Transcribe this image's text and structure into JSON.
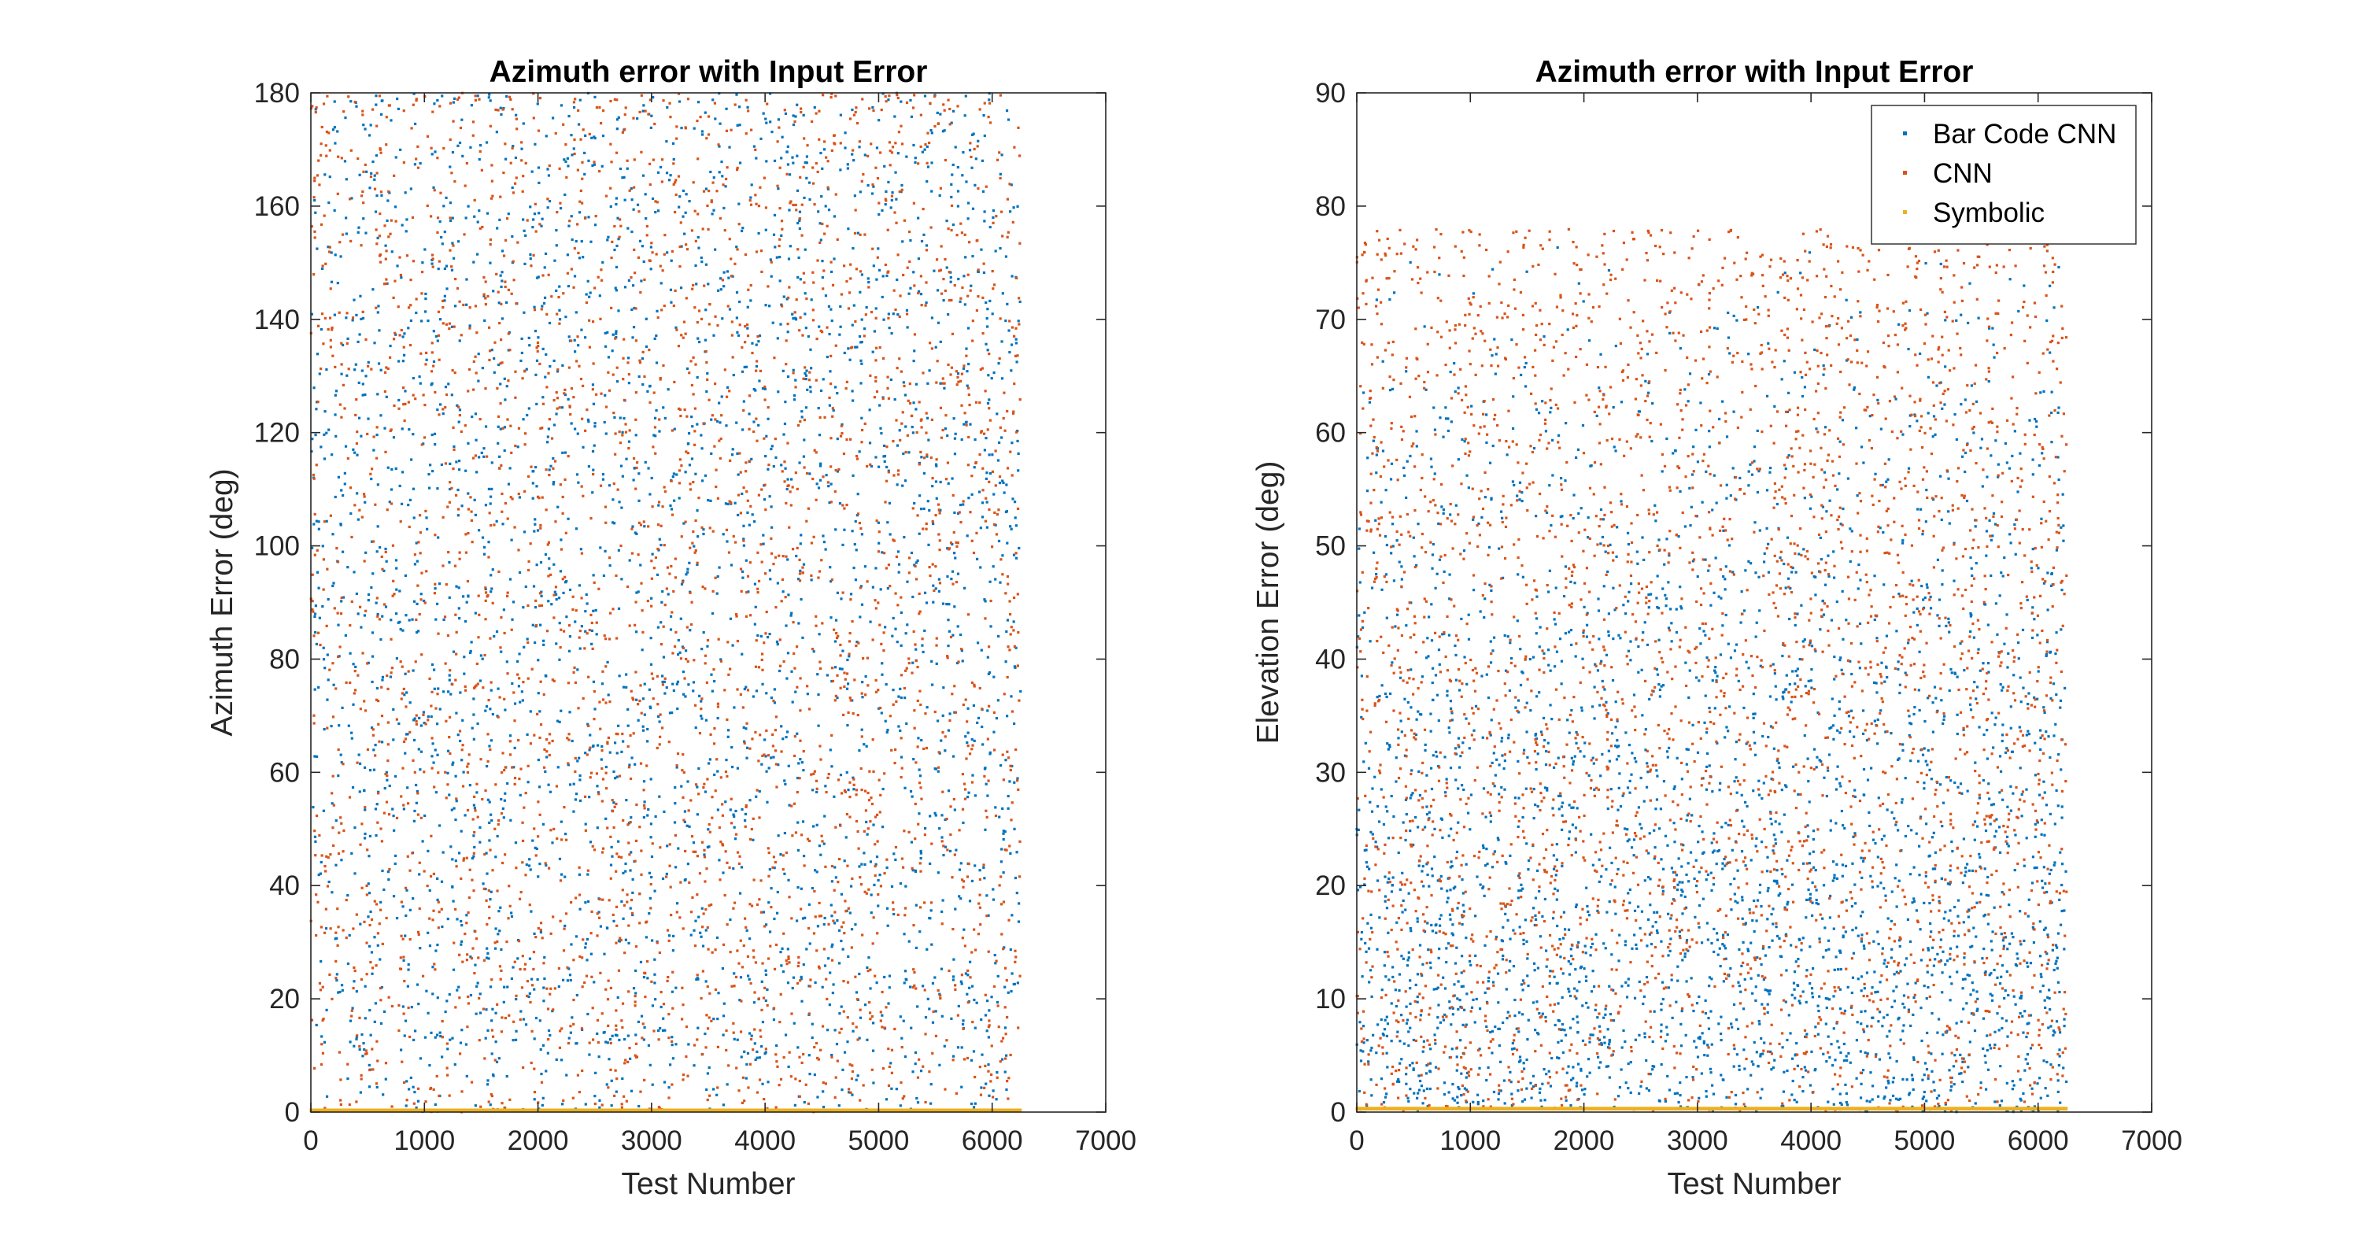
{
  "chart_data": [
    {
      "type": "scatter",
      "title": "Azimuth error with Input Error",
      "xlabel": "Test Number",
      "ylabel": "Azimuth Error (deg)",
      "xlim": [
        0,
        7000
      ],
      "ylim": [
        0,
        180
      ],
      "xticks": [
        "0",
        "1000",
        "2000",
        "3000",
        "4000",
        "5000",
        "6000",
        "7000"
      ],
      "yticks": [
        "0",
        "20",
        "40",
        "60",
        "80",
        "100",
        "120",
        "140",
        "160",
        "180"
      ],
      "legend": null,
      "grid": false,
      "series": [
        {
          "color": "#0072BD",
          "n_points": 3100,
          "x_range": [
            0,
            6250
          ],
          "y_distribution": "uniform",
          "y_range": [
            0,
            180
          ]
        },
        {
          "color": "#D95319",
          "n_points": 3100,
          "x_range": [
            0,
            6250
          ],
          "y_distribution": "uniform",
          "y_range": [
            0,
            180
          ]
        },
        {
          "color": "#EDB120",
          "n_points": 6250,
          "x_range": [
            0,
            6250
          ],
          "y_distribution": "constant",
          "y_value": 0.3
        }
      ]
    },
    {
      "type": "scatter",
      "title": "Azimuth error with Input Error",
      "xlabel": "Test Number",
      "ylabel": "Elevation Error (deg)",
      "xlim": [
        0,
        7000
      ],
      "ylim": [
        0,
        90
      ],
      "xticks": [
        "0",
        "1000",
        "2000",
        "3000",
        "4000",
        "5000",
        "6000",
        "7000"
      ],
      "yticks": [
        "0",
        "10",
        "20",
        "30",
        "40",
        "50",
        "60",
        "70",
        "80",
        "90"
      ],
      "legend": "top-right",
      "grid": false,
      "series": [
        {
          "name": "Bar Code CNN",
          "color": "#0072BD",
          "n_points": 3100,
          "x_range": [
            0,
            6250
          ],
          "y_distribution": "decreasing-triangular",
          "y_range": [
            0,
            78
          ]
        },
        {
          "name": "CNN",
          "color": "#D95319",
          "n_points": 3100,
          "x_range": [
            0,
            6250
          ],
          "y_distribution": "uniform",
          "y_range": [
            0,
            78
          ]
        },
        {
          "name": "Symbolic",
          "color": "#EDB120",
          "n_points": 6250,
          "x_range": [
            0,
            6250
          ],
          "y_distribution": "constant",
          "y_value": 0.3
        }
      ]
    }
  ]
}
